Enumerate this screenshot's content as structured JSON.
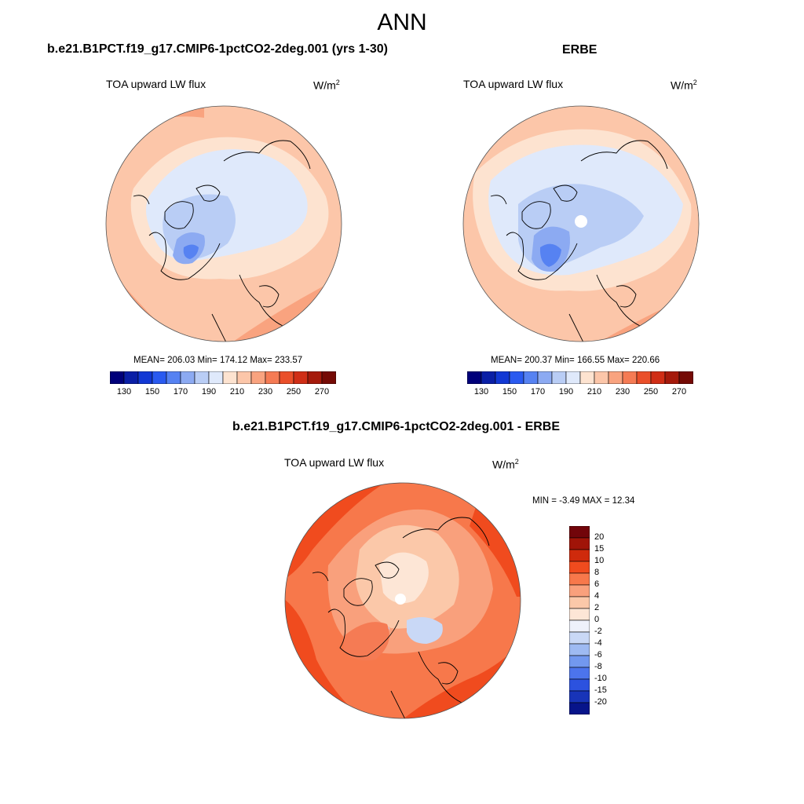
{
  "title": "ANN",
  "panels": [
    {
      "title": "b.e21.B1PCT.f19_g17.CMIP6-1pctCO2-2deg.001 (yrs 1-30)",
      "field": "TOA upward LW flux",
      "units_base": "W/m",
      "units_exp": "2",
      "stats": "MEAN= 206.03  Min= 174.12  Max= 233.57"
    },
    {
      "title": "ERBE",
      "field": "TOA upward LW flux",
      "units_base": "W/m",
      "units_exp": "2",
      "stats": "MEAN= 200.37  Min= 166.55  Max= 220.66"
    },
    {
      "title": "b.e21.B1PCT.f19_g17.CMIP6-1pctCO2-2deg.001 - ERBE",
      "field": "TOA upward LW flux",
      "units_base": "W/m",
      "units_exp": "2",
      "stats": "MIN =  -3.49 MAX =  12.34"
    }
  ],
  "abs_colorbar": {
    "colors": [
      "#00007a",
      "#0a1fa6",
      "#1238d4",
      "#2a5af0",
      "#5682f2",
      "#8caaf2",
      "#b9cdf5",
      "#dfe9fb",
      "#fde3d0",
      "#fcc6a9",
      "#f9a37f",
      "#f57b54",
      "#ea4f2a",
      "#d02e16",
      "#a51a0b",
      "#750a05"
    ],
    "labels": [
      "130",
      "150",
      "170",
      "190",
      "210",
      "230",
      "250",
      "270"
    ]
  },
  "diff_colorbar": {
    "colors": [
      "#72050a",
      "#a01408",
      "#cf2a0c",
      "#f04b1e",
      "#f7784b",
      "#f9a07c",
      "#fbc8a9",
      "#fde6d6",
      "#eef1fb",
      "#c9d8f6",
      "#9ebaf2",
      "#7298ef",
      "#4c74ec",
      "#2c52df",
      "#1834b8",
      "#07148a"
    ],
    "labels": [
      "20",
      "15",
      "10",
      "8",
      "6",
      "4",
      "2",
      "0",
      "-2",
      "-4",
      "-6",
      "-8",
      "-10",
      "-15",
      "-20"
    ]
  }
}
